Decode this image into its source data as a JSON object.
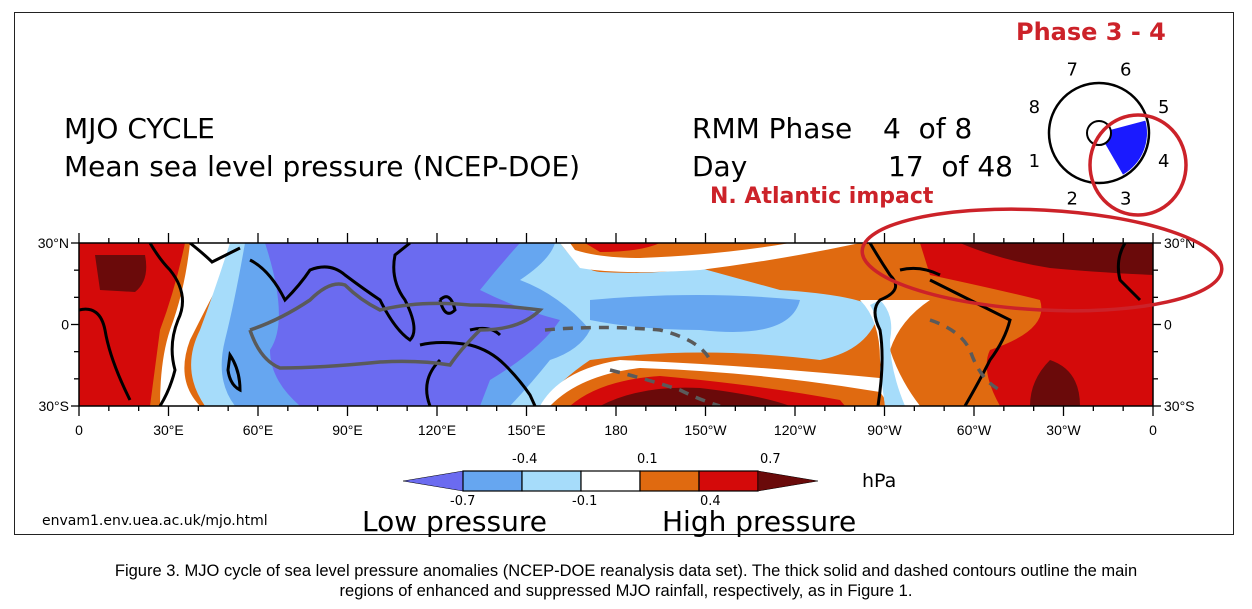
{
  "header": {
    "title": "MJO CYCLE",
    "subtitle": "Mean sea level pressure (NCEP-DOE)",
    "rmm_phase_label": "RMM Phase",
    "rmm_phase_value": "4  of 8",
    "day_label": "Day",
    "day_value": "17  of 48"
  },
  "annotations": {
    "phase_range": "Phase 3 - 4",
    "region_note": "N. Atlantic impact",
    "highlight_color": "#cc2229"
  },
  "phase_dial": {
    "labels": [
      "1",
      "2",
      "3",
      "4",
      "5",
      "6",
      "7",
      "8"
    ],
    "active_phase": 4,
    "active_color": "#1a1aff"
  },
  "map": {
    "lat_labels": [
      "30°N",
      "0",
      "30°S"
    ],
    "lon_labels": [
      "0",
      "30°E",
      "60°E",
      "90°E",
      "120°E",
      "150°E",
      "180",
      "150°W",
      "120°W",
      "90°W",
      "60°W",
      "30°W",
      "0"
    ],
    "lat_range": [
      -30,
      30
    ],
    "lon_range": [
      0,
      360
    ],
    "contour_legend": {
      "solid": "enhanced MJO rainfall",
      "dashed": "suppressed MJO rainfall"
    }
  },
  "colorbar": {
    "unit": "hPa",
    "levels_top": [
      "-0.4",
      "0.1",
      "0.7"
    ],
    "levels_bottom": [
      "-0.7",
      "-0.1",
      "0.4"
    ],
    "colors": [
      "#6b6bf0",
      "#66a6f0",
      "#a6dcfa",
      "#ffffff",
      "#e06a10",
      "#d40a0a",
      "#6a0a0a"
    ],
    "low_label": "Low pressure",
    "high_label": "High pressure"
  },
  "source_url": "envam1.env.uea.ac.uk/mjo.html",
  "caption": {
    "line1": "Figure 3. MJO cycle of sea level pressure anomalies (NCEP-DOE reanalysis data set). The thick solid and dashed contours outline the main",
    "line2": "regions of enhanced and suppressed MJO rainfall, respectively, as in Figure 1."
  }
}
